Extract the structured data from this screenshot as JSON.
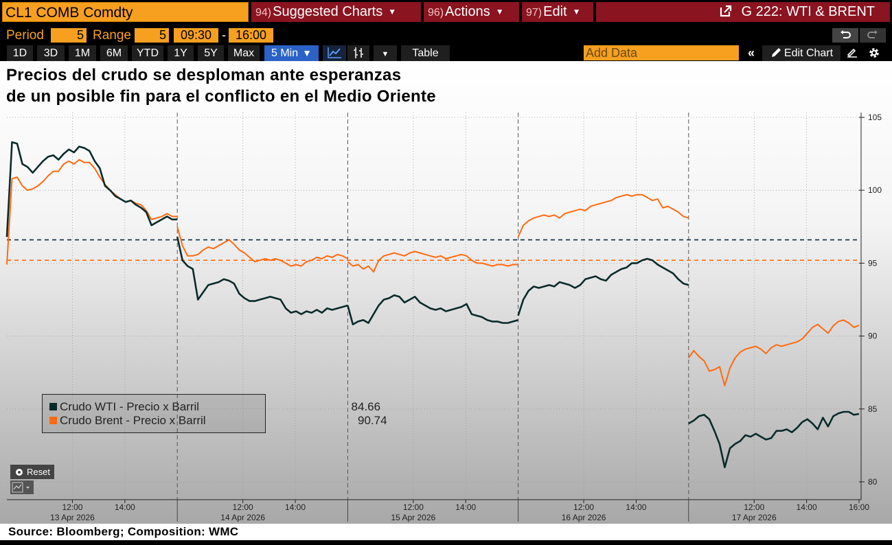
{
  "toolbar": {
    "ticker": "CL1 COMB Comdty",
    "suggested_num": "94)",
    "suggested_label": "Suggested Charts",
    "actions_num": "96)",
    "actions_label": "Actions",
    "edit_num": "97)",
    "edit_label": "Edit",
    "chart_id": "G 222: WTI & BRENT"
  },
  "settings": {
    "period_label": "Period",
    "period_value": "5",
    "range_label": "Range",
    "range_value": "5",
    "time_start": "09:30",
    "time_sep": "-",
    "time_end": "16:00"
  },
  "timebar": {
    "buttons": [
      "1D",
      "3D",
      "1M",
      "6M",
      "YTD",
      "1Y",
      "5Y",
      "Max"
    ],
    "interval": "5 Min",
    "table_label": "Table",
    "add_data_placeholder": "Add Data",
    "edit_chart_label": "Edit Chart"
  },
  "colors": {
    "wti": "#0b2a2a",
    "brent": "#ff6a10",
    "wti_ref": "#0b2a40",
    "brent_ref": "#ff6a10"
  },
  "icons": {
    "line_chart": "line-chart-icon",
    "bar_chart": "bar-chart-icon",
    "undo": "undo-icon",
    "redo": "redo-icon",
    "pencil": "pencil-icon",
    "gear": "gear-icon"
  },
  "chart_data": {
    "type": "line",
    "title": "Precios del crudo se desploman ante esperanzas\nde un posible fin para el conflicto en el Medio Oriente",
    "source": "Source: Bloomberg; Composition: WMC",
    "ylim": [
      79,
      106
    ],
    "y_ticks": [
      80,
      85,
      90,
      95,
      100,
      105
    ],
    "days": [
      {
        "date": "13 Apr 2026",
        "ticks": [
          "12:00",
          "14:00"
        ]
      },
      {
        "date": "14 Apr 2026",
        "ticks": [
          "12:00",
          "14:00"
        ]
      },
      {
        "date": "15 Apr 2026",
        "ticks": [
          "12:00",
          "14:00"
        ]
      },
      {
        "date": "16 Apr 2026",
        "ticks": [
          "12:00",
          "14:00"
        ]
      },
      {
        "date": "17 Apr 2026",
        "ticks": [
          "12:00",
          "14:00",
          "16:00"
        ]
      }
    ],
    "reference_lines": [
      {
        "series": "wti",
        "value": 96.6
      },
      {
        "series": "brent",
        "value": 95.2
      }
    ],
    "series": [
      {
        "key": "wti",
        "name": "Crudo WTI - Precio x Barril",
        "last": "84.66",
        "values": [
          [
            96.8,
            103.3,
            103.2,
            101.8,
            101.6,
            101.2,
            101.6,
            102.0,
            102.3,
            102.4,
            102.1,
            102.5,
            102.8,
            102.6,
            103.0,
            102.9,
            102.7,
            102.0,
            101.5,
            100.3,
            100.0,
            99.6,
            99.4,
            99.2,
            99.3,
            99.0,
            98.8,
            98.5,
            97.6,
            97.8,
            98.0,
            98.2,
            98.0,
            98.0
          ],
          [
            96.8,
            95.2,
            94.8,
            94.6,
            92.5,
            93.0,
            93.5,
            93.6,
            93.7,
            93.9,
            93.8,
            93.6,
            92.9,
            92.6,
            92.4,
            92.4,
            92.5,
            92.6,
            92.7,
            92.6,
            92.5,
            91.9,
            91.6,
            91.7,
            91.5,
            91.7,
            91.6,
            91.8,
            91.6,
            91.9,
            91.8,
            91.9,
            92.0,
            92.1
          ],
          [
            92.1,
            90.8,
            91.0,
            91.1,
            90.9,
            91.5,
            92.1,
            92.5,
            92.6,
            92.8,
            92.7,
            92.3,
            92.5,
            92.7,
            92.3,
            92.1,
            91.9,
            91.8,
            91.9,
            91.7,
            91.8,
            91.9,
            92.0,
            92.2,
            91.5,
            91.4,
            91.3,
            91.1,
            91.0,
            91.0,
            90.9,
            90.9,
            91.0,
            91.1
          ],
          [
            91.4,
            92.5,
            93.1,
            93.4,
            93.3,
            93.4,
            93.5,
            93.4,
            93.7,
            93.6,
            93.5,
            93.3,
            93.5,
            93.9,
            94.0,
            94.1,
            93.9,
            93.8,
            94.2,
            94.4,
            94.6,
            94.7,
            95.0,
            95.0,
            95.2,
            95.3,
            95.2,
            94.9,
            94.7,
            94.5,
            94.3,
            93.9,
            93.6,
            93.5
          ],
          [
            84.0,
            84.2,
            84.5,
            84.6,
            84.3,
            83.5,
            82.6,
            81.0,
            82.3,
            82.6,
            82.8,
            83.2,
            83.1,
            83.3,
            83.1,
            82.9,
            83.0,
            83.5,
            83.5,
            83.6,
            83.4,
            83.7,
            84.1,
            84.3,
            84.0,
            83.6,
            84.4,
            83.8,
            84.5,
            84.7,
            84.8,
            84.8,
            84.6,
            84.66
          ]
        ]
      },
      {
        "key": "brent",
        "name": "Crudo Brent - Precio x Barril",
        "last": "90.74",
        "values": [
          [
            94.9,
            100.8,
            100.9,
            100.3,
            100.0,
            100.1,
            100.3,
            100.6,
            101.0,
            101.3,
            101.3,
            101.8,
            102.0,
            101.8,
            102.1,
            101.9,
            101.9,
            101.5,
            100.9,
            100.4,
            100.0,
            99.7,
            99.4,
            99.2,
            99.3,
            99.1,
            99.0,
            98.6,
            98.0,
            98.1,
            98.2,
            98.4,
            98.2,
            98.2
          ],
          [
            97.5,
            96.2,
            95.5,
            95.5,
            95.6,
            95.9,
            96.1,
            96.0,
            96.2,
            96.4,
            96.6,
            96.3,
            95.9,
            95.7,
            95.4,
            95.1,
            95.2,
            95.3,
            95.2,
            95.3,
            95.2,
            95.0,
            94.8,
            94.9,
            94.8,
            95.1,
            95.2,
            95.4,
            95.3,
            95.5,
            95.4,
            95.6,
            95.5,
            95.3
          ],
          [
            95.1,
            94.8,
            94.9,
            94.6,
            94.8,
            94.4,
            95.2,
            95.5,
            95.6,
            95.7,
            95.6,
            95.5,
            95.7,
            95.8,
            95.7,
            95.6,
            95.5,
            95.4,
            95.5,
            95.3,
            95.4,
            95.5,
            95.6,
            95.5,
            95.2,
            95.0,
            95.0,
            94.9,
            94.8,
            94.9,
            94.9,
            94.8,
            94.9,
            94.9
          ],
          [
            96.8,
            97.6,
            97.9,
            98.1,
            98.2,
            98.3,
            98.2,
            98.3,
            98.1,
            98.4,
            98.5,
            98.6,
            98.7,
            98.6,
            98.9,
            99.0,
            99.1,
            99.2,
            99.3,
            99.5,
            99.6,
            99.7,
            99.6,
            99.7,
            99.7,
            99.5,
            99.3,
            99.4,
            98.8,
            98.9,
            98.7,
            98.5,
            98.2,
            98.1
          ],
          [
            88.5,
            89.0,
            88.6,
            88.3,
            87.6,
            87.7,
            87.9,
            86.6,
            87.8,
            88.5,
            88.9,
            89.1,
            89.2,
            89.3,
            89.1,
            88.8,
            89.2,
            89.4,
            89.3,
            89.4,
            89.5,
            89.6,
            89.8,
            90.2,
            90.6,
            90.8,
            90.5,
            90.2,
            90.7,
            91.0,
            91.1,
            90.9,
            90.6,
            90.74
          ]
        ]
      }
    ]
  }
}
